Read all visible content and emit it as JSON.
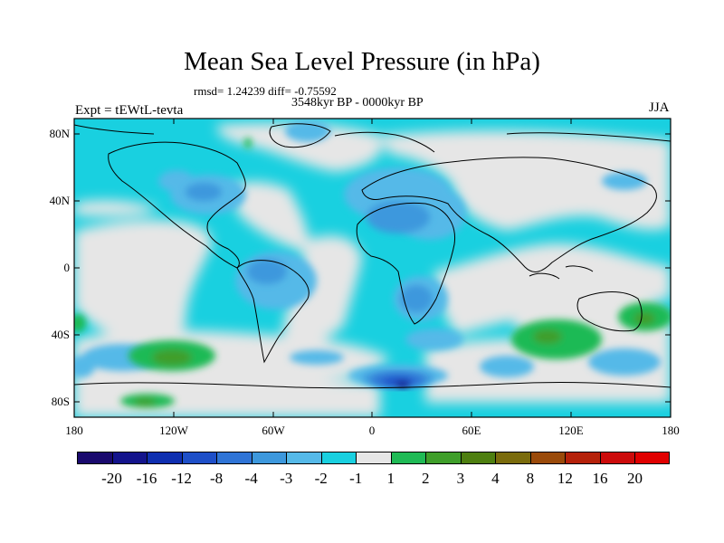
{
  "title": "Mean Sea Level Pressure (in hPa)",
  "stats": "rmsd= 1.24239  diff= -0.75592",
  "period": "3548kyr BP - 0000kyr BP",
  "expt": "Expt = tEWtL-tevta",
  "season": "JJA",
  "lat_labels": [
    "80N",
    "40N",
    "0",
    "40S",
    "80S"
  ],
  "lon_labels": [
    "180",
    "120W",
    "60W",
    "0",
    "60E",
    "120E",
    "180"
  ],
  "colorbar": {
    "labels": [
      "-20",
      "-16",
      "-12",
      "-8",
      "-4",
      "-3",
      "-2",
      "-1",
      "1",
      "2",
      "3",
      "4",
      "8",
      "12",
      "16",
      "20"
    ],
    "colors": [
      "#1a0a6e",
      "#14148c",
      "#0f2fb0",
      "#1e4fc8",
      "#2f74d6",
      "#3d98dd",
      "#55b9e8",
      "#19d0e0",
      "#e6e6e6",
      "#1fba55",
      "#3f9e2a",
      "#4e7f10",
      "#7a6b0c",
      "#9a4a0a",
      "#b5210a",
      "#cc0b0b",
      "#e00000"
    ]
  }
}
